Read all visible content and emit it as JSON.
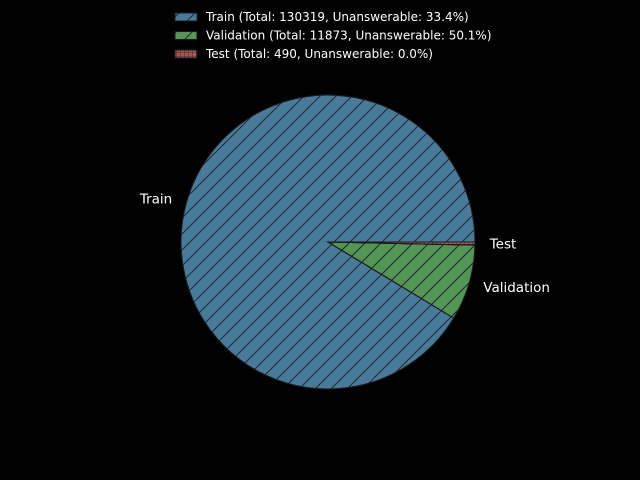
{
  "chart_data": {
    "type": "pie",
    "title": "",
    "background": "#000000",
    "start_angle_deg": 0,
    "direction": "counterclockwise",
    "legend_position": "top-center",
    "slices": [
      {
        "label": "Train",
        "value": 130319,
        "legend": "Train (Total: 130319, Unanswerable: 33.4%)",
        "color": "#4a7a99",
        "hatch": "diagonal"
      },
      {
        "label": "Validation",
        "value": 11873,
        "legend": "Validation (Total: 11873, Unanswerable: 50.1%)",
        "color": "#549455",
        "hatch": "diagonal"
      },
      {
        "label": "Test",
        "value": 490,
        "legend": "Test (Total: 490, Unanswerable: 0.0%)",
        "color": "#a55a5a",
        "hatch": "grid"
      }
    ]
  }
}
